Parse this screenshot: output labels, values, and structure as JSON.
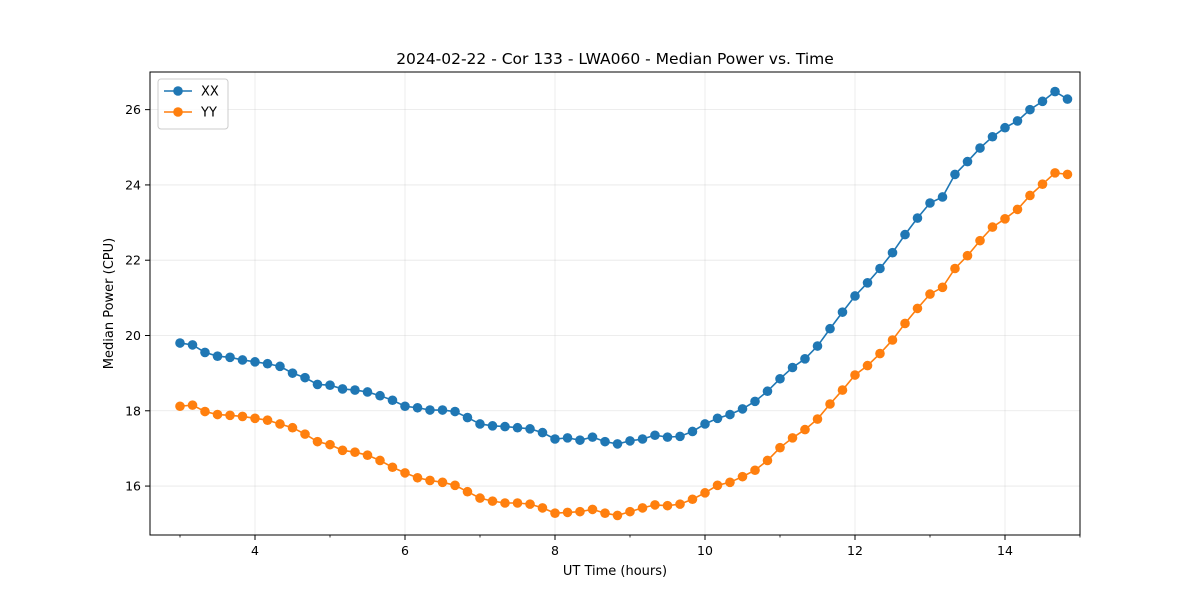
{
  "chart_data": {
    "type": "line",
    "title": "2024-02-22 - Cor 133 - LWA060 - Median Power vs. Time",
    "xlabel": "UT Time (hours)",
    "ylabel": "Median Power (CPU)",
    "xlim": [
      2.6,
      15.0
    ],
    "ylim": [
      14.7,
      27.0
    ],
    "xticks": [
      4,
      6,
      8,
      10,
      12,
      14
    ],
    "xtick_labels": [
      "4",
      "6",
      "8",
      "10",
      "12",
      "14"
    ],
    "yticks": [
      16,
      18,
      20,
      22,
      24,
      26
    ],
    "ytick_labels": [
      "16",
      "18",
      "20",
      "22",
      "24",
      "26"
    ],
    "grid": true,
    "legend_position": "top-left",
    "x": [
      3.0,
      3.167,
      3.333,
      3.5,
      3.667,
      3.833,
      4.0,
      4.167,
      4.333,
      4.5,
      4.667,
      4.833,
      5.0,
      5.167,
      5.333,
      5.5,
      5.667,
      5.833,
      6.0,
      6.167,
      6.333,
      6.5,
      6.667,
      6.833,
      7.0,
      7.167,
      7.333,
      7.5,
      7.667,
      7.833,
      8.0,
      8.167,
      8.333,
      8.5,
      8.667,
      8.833,
      9.0,
      9.167,
      9.333,
      9.5,
      9.667,
      9.833,
      10.0,
      10.167,
      10.333,
      10.5,
      10.667,
      10.833,
      11.0,
      11.167,
      11.333,
      11.5,
      11.667,
      11.833,
      12.0,
      12.167,
      12.333,
      12.5,
      12.667,
      12.833,
      13.0,
      13.167,
      13.333,
      13.5,
      13.667,
      13.833,
      14.0,
      14.167,
      14.333,
      14.5,
      14.667,
      14.833
    ],
    "series": [
      {
        "name": "XX",
        "color": "#1f77b4",
        "values": [
          19.8,
          19.75,
          19.55,
          19.45,
          19.42,
          19.35,
          19.3,
          19.25,
          19.18,
          19.0,
          18.88,
          18.7,
          18.68,
          18.58,
          18.55,
          18.5,
          18.4,
          18.28,
          18.12,
          18.08,
          18.02,
          18.02,
          17.98,
          17.82,
          17.65,
          17.6,
          17.58,
          17.55,
          17.52,
          17.42,
          17.25,
          17.28,
          17.22,
          17.3,
          17.18,
          17.12,
          17.2,
          17.25,
          17.35,
          17.3,
          17.32,
          17.45,
          17.65,
          17.8,
          17.9,
          18.05,
          18.25,
          18.52,
          18.85,
          19.15,
          19.38,
          19.72,
          20.18,
          20.62,
          21.05,
          21.4,
          21.78,
          22.2,
          22.68,
          23.12,
          23.52,
          23.68,
          24.28,
          24.62,
          24.98,
          25.28,
          25.52,
          25.7,
          26.0,
          26.22,
          26.48,
          26.28
        ]
      },
      {
        "name": "YY",
        "color": "#ff7f0e",
        "values": [
          18.12,
          18.15,
          17.98,
          17.9,
          17.88,
          17.85,
          17.8,
          17.75,
          17.65,
          17.55,
          17.38,
          17.18,
          17.1,
          16.95,
          16.9,
          16.82,
          16.68,
          16.5,
          16.35,
          16.22,
          16.15,
          16.1,
          16.02,
          15.85,
          15.68,
          15.6,
          15.55,
          15.55,
          15.52,
          15.42,
          15.28,
          15.3,
          15.32,
          15.38,
          15.28,
          15.22,
          15.32,
          15.42,
          15.5,
          15.48,
          15.52,
          15.65,
          15.82,
          16.02,
          16.1,
          16.25,
          16.42,
          16.68,
          17.02,
          17.28,
          17.5,
          17.78,
          18.18,
          18.55,
          18.95,
          19.2,
          19.52,
          19.88,
          20.32,
          20.72,
          21.1,
          21.28,
          21.78,
          22.12,
          22.52,
          22.88,
          23.1,
          23.35,
          23.72,
          24.02,
          24.32,
          24.28
        ]
      }
    ]
  }
}
